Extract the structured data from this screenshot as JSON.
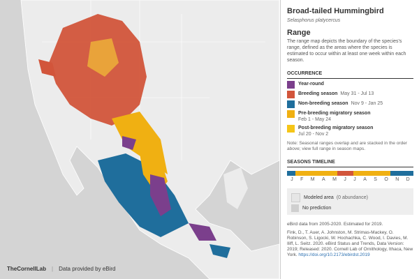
{
  "header": {
    "title": "Broad-tailed Hummingbird",
    "subtitle": "Selasphorus platycercus"
  },
  "range": {
    "heading": "Range",
    "description": "The range map depicts the boundary of the species's range, defined as the areas where the species is estimated to occur within at least one week within each season."
  },
  "occurrence": {
    "heading": "OCCURRENCE",
    "items": [
      {
        "label": "Year-round",
        "dates": null
      },
      {
        "label": "Breeding season",
        "dates": "May 31 - Jul 13"
      },
      {
        "label": "Non-breeding season",
        "dates": "Nov 9 - Jan 25"
      },
      {
        "label": "Pre-breeding migratory season",
        "dates": "Feb 1 - May 24"
      },
      {
        "label": "Post-breeding migratory season",
        "dates": "Jul 20 - Nov 2"
      }
    ],
    "note": "Note: Seasonal ranges overlap and are stacked in the order above; view full range in season maps."
  },
  "timeline": {
    "heading": "SEASONS TIMELINE",
    "months": [
      "J",
      "F",
      "M",
      "A",
      "M",
      "J",
      "J",
      "A",
      "S",
      "O",
      "N",
      "D"
    ]
  },
  "area": {
    "modeled": "Modeled area",
    "modeled_note": "(0 abundance)",
    "no_prediction": "No prediction"
  },
  "footer": {
    "data_years": "eBird data from 2005-2020. Estimated for 2019.",
    "citation": "Fink, D., T. Auer, A. Johnston, M. Strimas-Mackey, O. Robinson, S. Ligocki, W. Hochachka, C. Wood, I. Davies, M. Iliff, L. Seitz. 2020. eBird Status and Trends, Data Version: 2019; Released: 2020. Cornell Lab of Ornithology, Ithaca, New York.",
    "link": "https://doi.org/10.2173/ebirdst.2019"
  },
  "credits": {
    "lab": "TheCornellLab",
    "provider": "Data provided by eBird"
  }
}
